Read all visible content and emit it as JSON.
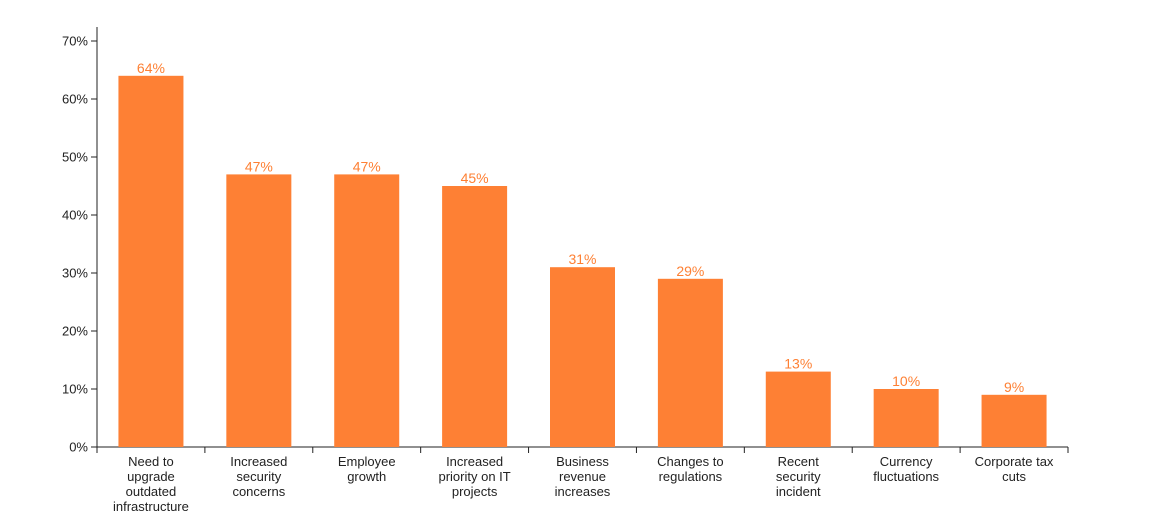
{
  "chart_data": {
    "type": "bar",
    "categories": [
      [
        "Need to",
        "upgrade",
        "outdated",
        "infrastructure"
      ],
      [
        "Increased",
        "security",
        "concerns"
      ],
      [
        "Employee",
        "growth"
      ],
      [
        "Increased",
        "priority on IT",
        "projects"
      ],
      [
        "Business",
        "revenue",
        "increases"
      ],
      [
        "Changes to",
        "regulations"
      ],
      [
        "Recent",
        "security",
        "incident"
      ],
      [
        "Currency",
        "fluctuations"
      ],
      [
        "Corporate tax",
        "cuts"
      ]
    ],
    "values": [
      64,
      47,
      47,
      45,
      31,
      29,
      13,
      10,
      9
    ],
    "value_labels": [
      "64%",
      "47%",
      "47%",
      "45%",
      "31%",
      "29%",
      "13%",
      "10%",
      "9%"
    ],
    "yticks": [
      0,
      10,
      20,
      30,
      40,
      50,
      60,
      70
    ],
    "ytick_labels": [
      "0%",
      "10%",
      "20%",
      "30%",
      "40%",
      "50%",
      "60%",
      "70%"
    ],
    "ylim": [
      0,
      70
    ],
    "grid": false,
    "legend": "none",
    "bar_color": "#fe8034",
    "label_color": "#fe8034",
    "axis_color": "#222222"
  }
}
